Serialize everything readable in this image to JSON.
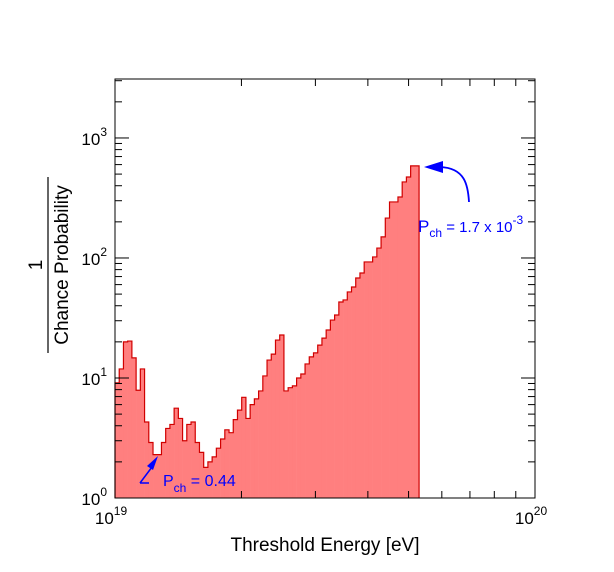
{
  "chart_data": {
    "type": "histogram",
    "title": "",
    "xlabel": "Threshold Energy [eV]",
    "ylabel_numerator": "1",
    "ylabel_denominator": "Chance Probability",
    "xscale": "log",
    "yscale": "log",
    "xlim": [
      1e+19,
      1e+20
    ],
    "ylim": [
      1,
      3100
    ],
    "x_tick_labels": [
      {
        "base": "10",
        "exp": "19",
        "value": 1e+19
      },
      {
        "base": "10",
        "exp": "20",
        "value": 1e+20
      }
    ],
    "y_tick_labels": [
      {
        "base": "10",
        "exp": "0",
        "value": 1
      },
      {
        "base": "10",
        "exp": "1",
        "value": 10
      },
      {
        "base": "10",
        "exp": "2",
        "value": 100
      },
      {
        "base": "10",
        "exp": "3",
        "value": 1000
      }
    ],
    "grid": false,
    "bins_log10_start": 19.0,
    "bins_log10_end": 19.724,
    "values": [
      9.1,
      11.9,
      20.0,
      20.3,
      14.7,
      7.9,
      11.9,
      4.3,
      2.9,
      2.3,
      2.3,
      2.9,
      3.8,
      4.1,
      5.6,
      4.6,
      3.0,
      4.1,
      4.3,
      2.9,
      2.4,
      1.8,
      2.0,
      2.2,
      2.6,
      3.1,
      3.7,
      3.5,
      4.5,
      5.4,
      6.9,
      4.6,
      6.0,
      6.7,
      7.8,
      10.4,
      14.1,
      15.8,
      20.7,
      22.8,
      7.8,
      8.3,
      8.6,
      10.0,
      10.8,
      13.1,
      15.0,
      16.2,
      18.8,
      21.5,
      25.1,
      30.4,
      33.5,
      43.0,
      44.7,
      52.1,
      57.3,
      68.1,
      75.0,
      92.7,
      92.7,
      102,
      121,
      150,
      215,
      293,
      293,
      322,
      430,
      473,
      585,
      585
    ],
    "fill_color": "#ff7f7f",
    "line_color": "#d00000",
    "annotations": [
      {
        "p": "P",
        "sub": "ch",
        "text": " = 0.44",
        "color": "#0000ff"
      },
      {
        "p": "P",
        "sub": "ch",
        "text": " = 1.7 x 10",
        "sup": "-3",
        "color": "#0000ff"
      }
    ]
  }
}
